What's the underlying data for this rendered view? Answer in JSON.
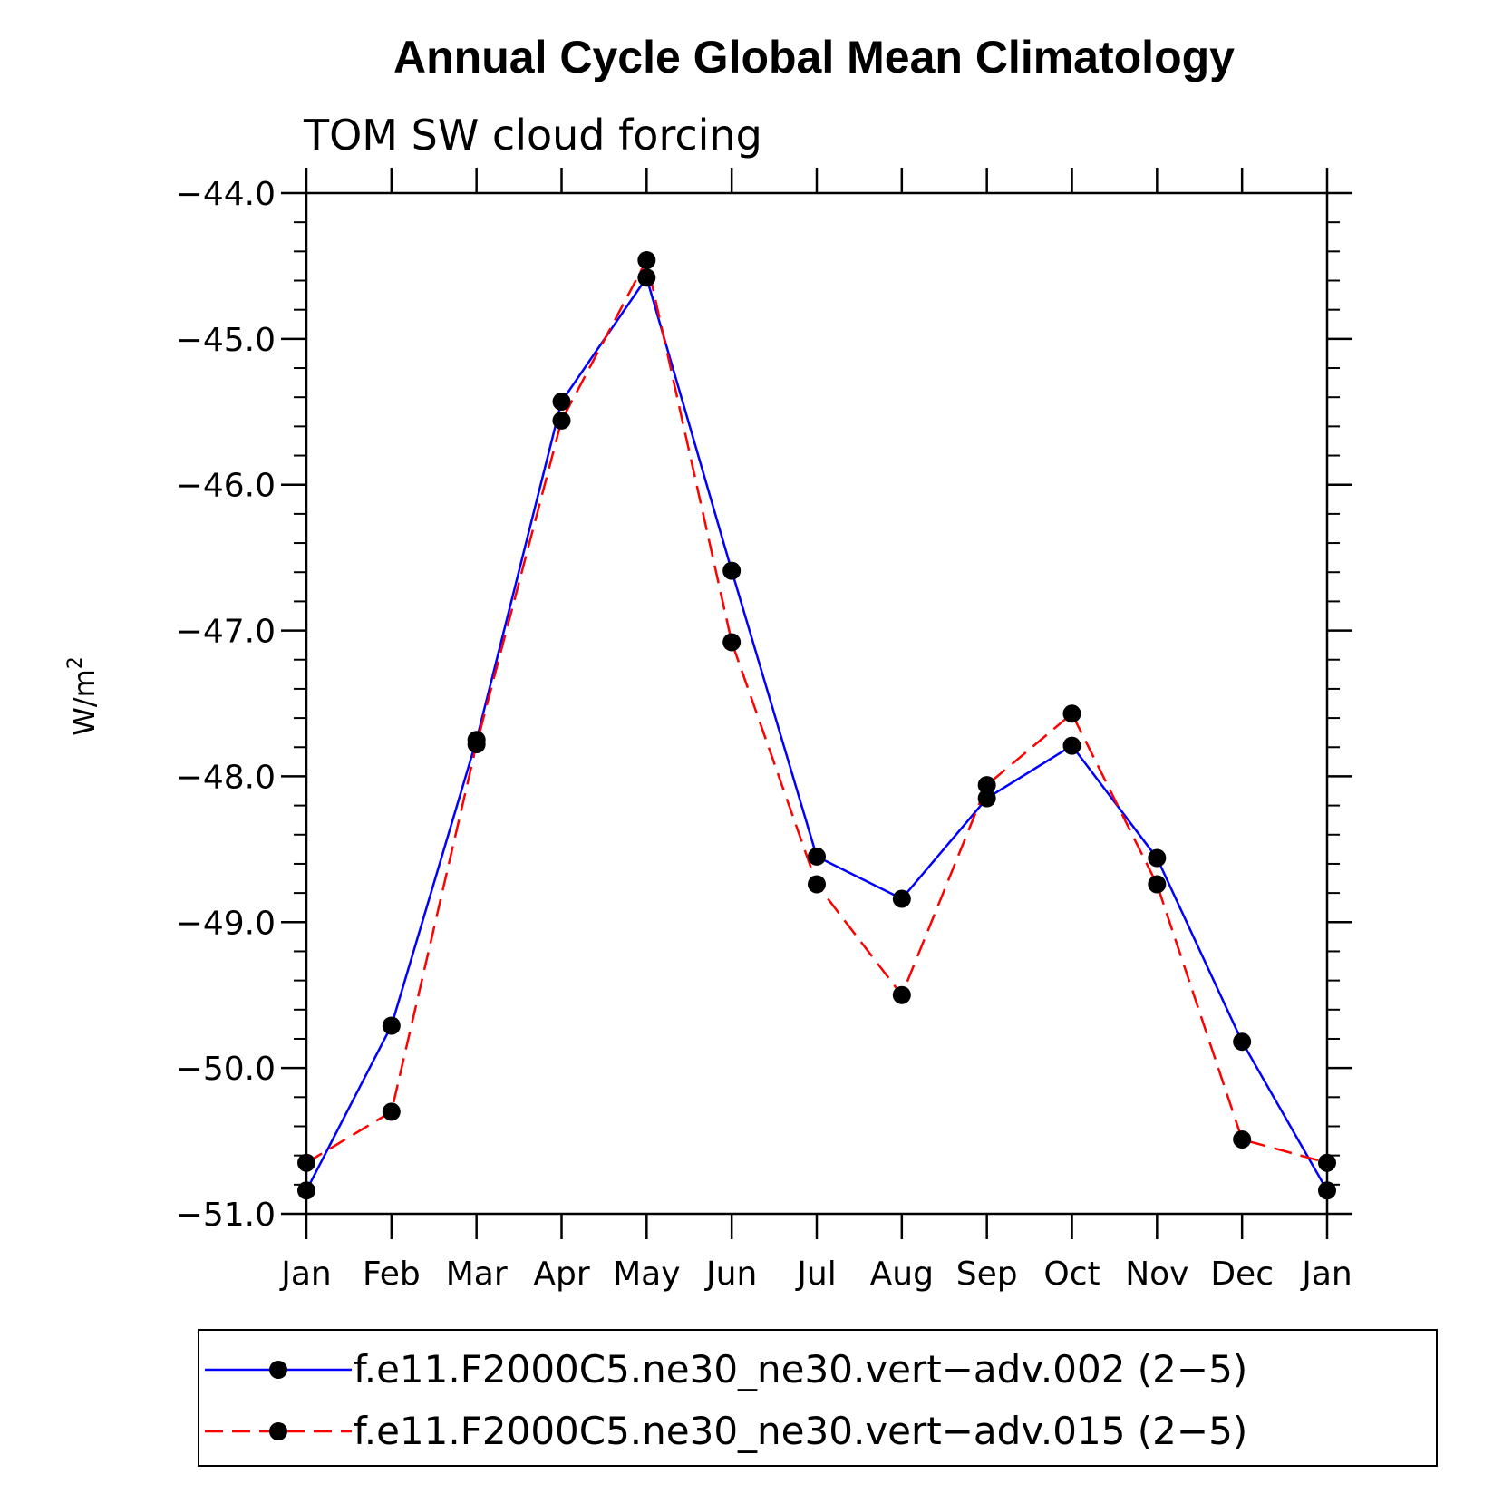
{
  "chart_data": {
    "type": "line",
    "title": "Annual Cycle Global Mean Climatology",
    "subtitle": "TOM SW cloud forcing",
    "xlabel": "",
    "ylabel": "W/m",
    "ylabel_superscript": "2",
    "categories": [
      "Jan",
      "Feb",
      "Mar",
      "Apr",
      "May",
      "Jun",
      "Jul",
      "Aug",
      "Sep",
      "Oct",
      "Nov",
      "Dec",
      "Jan"
    ],
    "ylim": [
      -51.0,
      -44.0
    ],
    "yticks": [
      -51.0,
      -50.0,
      -49.0,
      -48.0,
      -47.0,
      -46.0,
      -45.0,
      -44.0
    ],
    "ytick_labels": [
      "−51.0",
      "−50.0",
      "−49.0",
      "−48.0",
      "−47.0",
      "−46.0",
      "−45.0",
      "−44.0"
    ],
    "grid": false,
    "legend_position": "bottom",
    "series": [
      {
        "name": "f.e11.F2000C5.ne30_ne30.vert−adv.002 (2−5)",
        "color": "#0000ff",
        "dash": "solid",
        "marker": "filled-circle",
        "values": [
          -50.84,
          -49.71,
          -47.75,
          -45.43,
          -44.58,
          -46.59,
          -48.55,
          -48.84,
          -48.15,
          -47.79,
          -48.56,
          -49.82,
          -50.84
        ]
      },
      {
        "name": "f.e11.F2000C5.ne30_ne30.vert−adv.015 (2−5)",
        "color": "#ff0000",
        "dash": "dashed",
        "marker": "filled-circle",
        "values": [
          -50.65,
          -50.3,
          -47.78,
          -45.56,
          -44.46,
          -47.08,
          -48.74,
          -49.5,
          -48.06,
          -47.57,
          -48.74,
          -50.49,
          -50.65
        ]
      }
    ]
  }
}
